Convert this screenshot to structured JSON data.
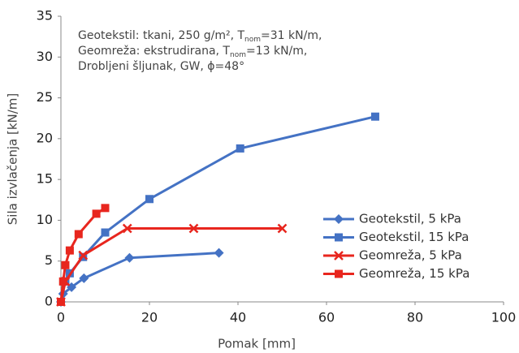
{
  "chart_data": {
    "type": "line",
    "xlabel": "Pomak [mm]",
    "ylabel": "Sila izvlačenja [kN/m]",
    "annotation": [
      [
        "Geotekstil: tkani, 250 g/m², T",
        "nom",
        "=31 kN/m,"
      ],
      [
        "Geomreža: ekstrudirana, T",
        "nom",
        "=13 kN/m,"
      ],
      [
        "Drobljeni šljunak, GW, ϕ=48°"
      ]
    ],
    "xlim": [
      0,
      100
    ],
    "xticks": [
      0,
      20,
      40,
      60,
      80,
      100
    ],
    "ylim": [
      0,
      35
    ],
    "yticks": [
      0,
      5,
      10,
      15,
      20,
      25,
      30,
      35
    ],
    "grid": false,
    "legend": "right",
    "series": [
      {
        "name": "Geotekstil, 5 kPa",
        "color": "#4472c4",
        "marker": "diamond",
        "x": [
          0,
          0.5,
          2.4,
          5.2,
          15.5,
          35.7
        ],
        "values": [
          0,
          1.0,
          1.8,
          2.9,
          5.4,
          6.0
        ]
      },
      {
        "name": "Geotekstil, 15 kPa",
        "color": "#4472c4",
        "marker": "square",
        "x": [
          0,
          1,
          2,
          5,
          10,
          20,
          40.5,
          71
        ],
        "values": [
          0,
          2.5,
          3.5,
          5.5,
          8.5,
          12.6,
          18.8,
          22.7
        ]
      },
      {
        "name": "Geomreža, 5 kPa",
        "color": "#e8261e",
        "marker": "x",
        "x": [
          0,
          1,
          5,
          15,
          30,
          50
        ],
        "values": [
          0,
          2.5,
          5.7,
          9.0,
          9.0,
          9.0
        ]
      },
      {
        "name": "Geomreža, 15 kPa",
        "color": "#e8261e",
        "marker": "square",
        "x": [
          0,
          0.5,
          1,
          2,
          4,
          8,
          10
        ],
        "values": [
          0,
          2.5,
          4.5,
          6.3,
          8.3,
          10.8,
          11.5
        ]
      }
    ]
  }
}
